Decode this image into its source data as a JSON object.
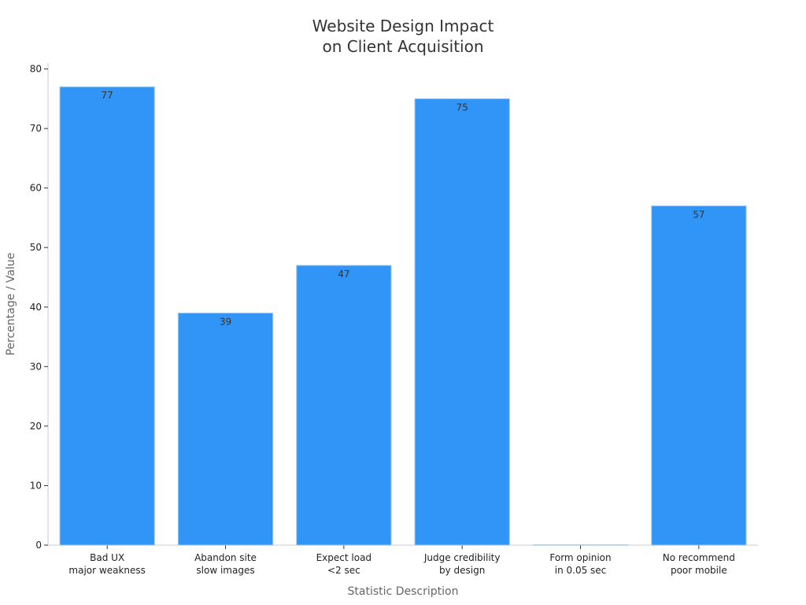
{
  "chart_data": {
    "type": "bar",
    "title": [
      "Website Design Impact",
      "on Client Acquisition"
    ],
    "xlabel": "Statistic Description",
    "ylabel": "Percentage / Value",
    "categories": [
      [
        "Bad UX",
        "major weakness"
      ],
      [
        "Abandon site",
        "slow images"
      ],
      [
        "Expect load",
        "<2 sec"
      ],
      [
        "Judge credibility",
        "by design"
      ],
      [
        "Form opinion",
        "in 0.05 sec"
      ],
      [
        "No recommend",
        "poor mobile"
      ]
    ],
    "values": [
      77,
      39,
      47,
      75,
      0.05,
      57
    ],
    "data_labels": [
      "77",
      "39",
      "47",
      "75",
      "",
      "57"
    ],
    "ylim": [
      0,
      81
    ],
    "yticks": [
      0,
      10,
      20,
      30,
      40,
      50,
      60,
      70,
      80
    ],
    "grid": false,
    "bar_color": "#3195F7",
    "bar_edge_color": "#9fc8ef"
  }
}
